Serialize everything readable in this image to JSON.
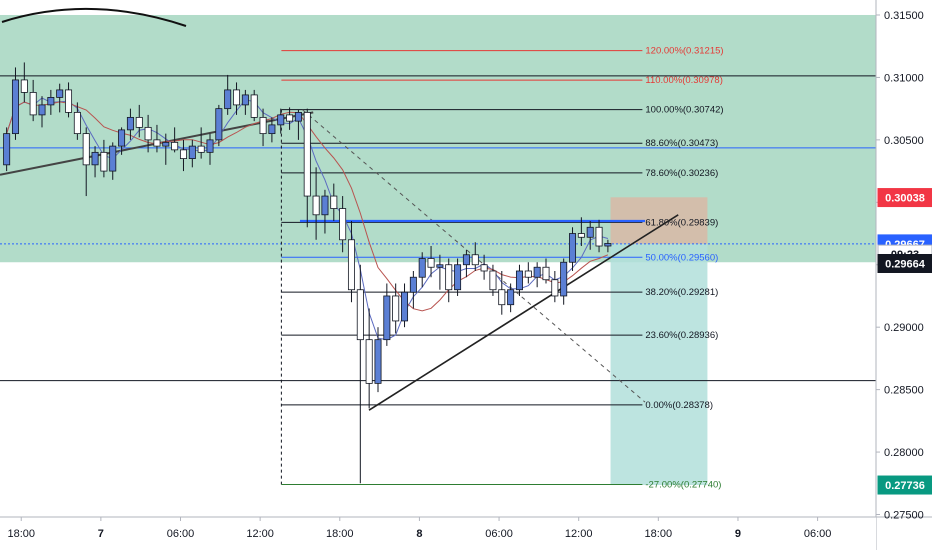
{
  "chart_data": {
    "type": "candlestick",
    "instrument_hint": "",
    "y_ticks": [
      "0.31500",
      "0.31000",
      "0.30500",
      "0.30000",
      "0.29500",
      "0.29000",
      "0.28500",
      "0.28000",
      "0.27500"
    ],
    "y_tick_values": [
      0.315,
      0.31,
      0.305,
      0.3,
      0.295,
      0.29,
      0.285,
      0.28,
      0.275
    ],
    "x_ticks": [
      "18:00",
      "7",
      "06:00",
      "12:00",
      "18:00",
      "8",
      "06:00",
      "12:00",
      "18:00",
      "9",
      "06:00"
    ],
    "x_tick_hours": [
      0,
      6,
      12,
      18,
      24,
      30,
      36,
      42,
      48,
      54,
      60
    ],
    "ylim": [
      0.2748,
      0.3162
    ],
    "xlim_hours": [
      -1.6,
      64.4
    ],
    "price_badges": [
      {
        "label": "0.30038",
        "value": 0.30038,
        "color": "#f23645",
        "text_color": "#ffffff"
      },
      {
        "label": "0.29667",
        "value": 0.29667,
        "color": "#2962ff",
        "text_color": "#ffffff"
      },
      {
        "label": "09:23",
        "value": 0.29585,
        "color": "#ffffff",
        "text_color": "#131722",
        "prefix": "0."
      },
      {
        "label": "0.29664",
        "value": 0.2951,
        "color": "#131722",
        "text_color": "#ffffff"
      },
      {
        "label": "0.27736",
        "value": 0.27736,
        "color": "#089981",
        "text_color": "#ffffff"
      }
    ],
    "fib_levels": [
      {
        "label": "120.00%(0.31215)",
        "value": 0.31215,
        "color": "#e53935"
      },
      {
        "label": "110.00%(0.30978)",
        "value": 0.30978,
        "color": "#e53935"
      },
      {
        "label": "100.00%(0.30742)",
        "value": 0.30742,
        "color": "#131722"
      },
      {
        "label": "88.60%(0.30473)",
        "value": 0.30473,
        "color": "#131722"
      },
      {
        "label": "78.60%(0.30236)",
        "value": 0.30236,
        "color": "#131722"
      },
      {
        "label": "61.80%(0.29839)",
        "value": 0.29839,
        "color": "#131722"
      },
      {
        "label": "50.00%(0.29560)",
        "value": 0.2956,
        "color": "#2962ff"
      },
      {
        "label": "38.20%(0.29281)",
        "value": 0.29281,
        "color": "#131722"
      },
      {
        "label": "23.60%(0.28936)",
        "value": 0.28936,
        "color": "#131722"
      },
      {
        "label": "0.00%(0.28378)",
        "value": 0.28378,
        "color": "#131722"
      },
      {
        "label": "-27.00%(0.27740)",
        "value": 0.2774,
        "color": "#2e7d32"
      }
    ],
    "horizontal_lines": [
      {
        "value": 0.31012,
        "color": "#131722"
      },
      {
        "value": 0.30436,
        "color": "#2962ff"
      },
      {
        "value": 0.28572,
        "color": "#131722"
      },
      {
        "value": 0.29667,
        "color": "#2962ff",
        "dotted": true
      }
    ],
    "zones": [
      {
        "x_start_hours": -1.6,
        "x_end_hours": 64.4,
        "y_top": 0.315,
        "y_bottom": 0.2952,
        "color": "#a5d6bf"
      },
      {
        "x_start_hours": 44.4,
        "x_end_hours": 51.7,
        "y_top": 0.3004,
        "y_bottom": 0.29667,
        "color": "#d8b9a6"
      },
      {
        "x_start_hours": 44.4,
        "x_end_hours": 51.7,
        "y_top": 0.29667,
        "y_bottom": 0.27736,
        "color": "#b2dfdb"
      }
    ],
    "trendlines": [
      {
        "x1_hours": -1.6,
        "y1": 0.3022,
        "x2_hours": 22.0,
        "y2": 0.3072,
        "color": "#444444",
        "width": 2
      },
      {
        "x1_hours": 26.2,
        "y1": 0.28335,
        "x2_hours": 49.5,
        "y2": 0.299,
        "color": "#222222",
        "width": 1.6
      },
      {
        "x1_hours": 21.2,
        "y1": 0.3074,
        "x2_hours": 47.0,
        "y2": 0.284,
        "color": "#555555",
        "width": 1,
        "dashed": true
      },
      {
        "x1_hours": 21.0,
        "y1": 0.2985,
        "x2_hours": 47.0,
        "y2": 0.2985,
        "color": "#2962ff",
        "width": 2.2
      }
    ],
    "candles_hourly": [
      {
        "o": 0.303,
        "h": 0.306,
        "l": 0.3025,
        "c": 0.3055
      },
      {
        "o": 0.3055,
        "h": 0.3108,
        "l": 0.305,
        "c": 0.3098
      },
      {
        "o": 0.3098,
        "h": 0.3112,
        "l": 0.308,
        "c": 0.3088
      },
      {
        "o": 0.3088,
        "h": 0.3098,
        "l": 0.3065,
        "c": 0.307
      },
      {
        "o": 0.307,
        "h": 0.3085,
        "l": 0.306,
        "c": 0.3078
      },
      {
        "o": 0.3078,
        "h": 0.309,
        "l": 0.307,
        "c": 0.3084
      },
      {
        "o": 0.3084,
        "h": 0.3095,
        "l": 0.3072,
        "c": 0.309
      },
      {
        "o": 0.309,
        "h": 0.3096,
        "l": 0.3068,
        "c": 0.3072
      },
      {
        "o": 0.3072,
        "h": 0.308,
        "l": 0.305,
        "c": 0.3055
      },
      {
        "o": 0.3055,
        "h": 0.306,
        "l": 0.3005,
        "c": 0.303
      },
      {
        "o": 0.303,
        "h": 0.3045,
        "l": 0.302,
        "c": 0.304
      },
      {
        "o": 0.304,
        "h": 0.305,
        "l": 0.302,
        "c": 0.3025
      },
      {
        "o": 0.3025,
        "h": 0.3048,
        "l": 0.3018,
        "c": 0.3045
      },
      {
        "o": 0.3045,
        "h": 0.306,
        "l": 0.3038,
        "c": 0.3058
      },
      {
        "o": 0.3058,
        "h": 0.3075,
        "l": 0.305,
        "c": 0.3068
      },
      {
        "o": 0.3068,
        "h": 0.3078,
        "l": 0.3052,
        "c": 0.306
      },
      {
        "o": 0.306,
        "h": 0.307,
        "l": 0.304,
        "c": 0.305
      },
      {
        "o": 0.305,
        "h": 0.3062,
        "l": 0.304,
        "c": 0.3045
      },
      {
        "o": 0.3045,
        "h": 0.3055,
        "l": 0.303,
        "c": 0.3048
      },
      {
        "o": 0.3048,
        "h": 0.306,
        "l": 0.304,
        "c": 0.3042
      },
      {
        "o": 0.3042,
        "h": 0.305,
        "l": 0.3025,
        "c": 0.3035
      },
      {
        "o": 0.3035,
        "h": 0.305,
        "l": 0.3028,
        "c": 0.3045
      },
      {
        "o": 0.3045,
        "h": 0.306,
        "l": 0.3035,
        "c": 0.304
      },
      {
        "o": 0.304,
        "h": 0.3055,
        "l": 0.303,
        "c": 0.305
      },
      {
        "o": 0.305,
        "h": 0.3078,
        "l": 0.3045,
        "c": 0.3075
      },
      {
        "o": 0.3075,
        "h": 0.3102,
        "l": 0.307,
        "c": 0.309
      },
      {
        "o": 0.309,
        "h": 0.3096,
        "l": 0.307,
        "c": 0.3078
      },
      {
        "o": 0.3078,
        "h": 0.309,
        "l": 0.307,
        "c": 0.3086
      },
      {
        "o": 0.3086,
        "h": 0.309,
        "l": 0.3065,
        "c": 0.3068
      },
      {
        "o": 0.3068,
        "h": 0.3075,
        "l": 0.3045,
        "c": 0.3055
      },
      {
        "o": 0.3055,
        "h": 0.3068,
        "l": 0.3048,
        "c": 0.3062
      },
      {
        "o": 0.3062,
        "h": 0.3075,
        "l": 0.3055,
        "c": 0.307
      },
      {
        "o": 0.307,
        "h": 0.3076,
        "l": 0.3058,
        "c": 0.3065
      },
      {
        "o": 0.3065,
        "h": 0.3074,
        "l": 0.305,
        "c": 0.3072
      },
      {
        "o": 0.3072,
        "h": 0.3075,
        "l": 0.298,
        "c": 0.3005
      },
      {
        "o": 0.3005,
        "h": 0.3028,
        "l": 0.297,
        "c": 0.299
      },
      {
        "o": 0.299,
        "h": 0.301,
        "l": 0.2975,
        "c": 0.3005
      },
      {
        "o": 0.3005,
        "h": 0.3015,
        "l": 0.2985,
        "c": 0.2995
      },
      {
        "o": 0.2995,
        "h": 0.3005,
        "l": 0.296,
        "c": 0.297
      },
      {
        "o": 0.297,
        "h": 0.2985,
        "l": 0.292,
        "c": 0.293
      },
      {
        "o": 0.293,
        "h": 0.295,
        "l": 0.2775,
        "c": 0.289
      },
      {
        "o": 0.289,
        "h": 0.2915,
        "l": 0.2835,
        "c": 0.2855
      },
      {
        "o": 0.2855,
        "h": 0.29,
        "l": 0.2848,
        "c": 0.289
      },
      {
        "o": 0.289,
        "h": 0.2935,
        "l": 0.2885,
        "c": 0.2925
      },
      {
        "o": 0.2925,
        "h": 0.2935,
        "l": 0.2895,
        "c": 0.2905
      },
      {
        "o": 0.2905,
        "h": 0.2935,
        "l": 0.29,
        "c": 0.2928
      },
      {
        "o": 0.2928,
        "h": 0.2945,
        "l": 0.2915,
        "c": 0.294
      },
      {
        "o": 0.294,
        "h": 0.296,
        "l": 0.2932,
        "c": 0.2955
      },
      {
        "o": 0.2955,
        "h": 0.2965,
        "l": 0.294,
        "c": 0.2948
      },
      {
        "o": 0.2948,
        "h": 0.2958,
        "l": 0.293,
        "c": 0.295
      },
      {
        "o": 0.295,
        "h": 0.2955,
        "l": 0.292,
        "c": 0.293
      },
      {
        "o": 0.293,
        "h": 0.2955,
        "l": 0.2925,
        "c": 0.295
      },
      {
        "o": 0.295,
        "h": 0.2962,
        "l": 0.294,
        "c": 0.2958
      },
      {
        "o": 0.2958,
        "h": 0.2968,
        "l": 0.2945,
        "c": 0.295
      },
      {
        "o": 0.295,
        "h": 0.2958,
        "l": 0.2938,
        "c": 0.2945
      },
      {
        "o": 0.2945,
        "h": 0.295,
        "l": 0.2925,
        "c": 0.293
      },
      {
        "o": 0.293,
        "h": 0.2945,
        "l": 0.291,
        "c": 0.2918
      },
      {
        "o": 0.2918,
        "h": 0.2935,
        "l": 0.2912,
        "c": 0.293
      },
      {
        "o": 0.293,
        "h": 0.295,
        "l": 0.2925,
        "c": 0.2945
      },
      {
        "o": 0.2945,
        "h": 0.2952,
        "l": 0.2935,
        "c": 0.294
      },
      {
        "o": 0.294,
        "h": 0.2952,
        "l": 0.2932,
        "c": 0.2948
      },
      {
        "o": 0.2948,
        "h": 0.2955,
        "l": 0.2935,
        "c": 0.2938
      },
      {
        "o": 0.2938,
        "h": 0.2945,
        "l": 0.292,
        "c": 0.2925
      },
      {
        "o": 0.2925,
        "h": 0.2955,
        "l": 0.2918,
        "c": 0.2952
      },
      {
        "o": 0.2952,
        "h": 0.298,
        "l": 0.2945,
        "c": 0.2975
      },
      {
        "o": 0.2975,
        "h": 0.2988,
        "l": 0.2965,
        "c": 0.2972
      },
      {
        "o": 0.2972,
        "h": 0.2985,
        "l": 0.2962,
        "c": 0.298
      },
      {
        "o": 0.298,
        "h": 0.2986,
        "l": 0.296,
        "c": 0.2965
      },
      {
        "o": 0.2965,
        "h": 0.297,
        "l": 0.296,
        "c": 0.2967
      }
    ]
  }
}
